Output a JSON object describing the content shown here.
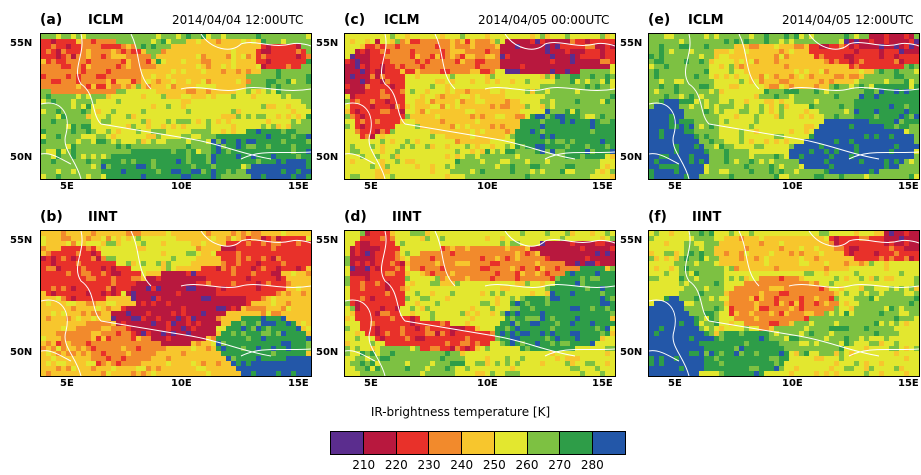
{
  "panels": [
    {
      "label": "(a)",
      "model": "ICLM",
      "time": "2014/04/04 12:00UTC"
    },
    {
      "label": "(c)",
      "model": "ICLM",
      "time": "2014/04/05 00:00UTC"
    },
    {
      "label": "(e)",
      "model": "ICLM",
      "time": "2014/04/05 12:00UTC"
    },
    {
      "label": "(b)",
      "model": "IINT",
      "time": ""
    },
    {
      "label": "(d)",
      "model": "IINT",
      "time": ""
    },
    {
      "label": "(f)",
      "model": "IINT",
      "time": ""
    }
  ],
  "axes": {
    "lat_labels": [
      "55N",
      "50N"
    ],
    "lon_labels": [
      "5E",
      "10E",
      "15E"
    ]
  },
  "colorbar": {
    "title": "IR-brightness temperature [K]",
    "ticks": [
      "210",
      "220",
      "230",
      "240",
      "250",
      "260",
      "270",
      "280"
    ],
    "colors": [
      "#5b2d8e",
      "#b8183e",
      "#e8312a",
      "#f28a2c",
      "#f7c62d",
      "#e3e72f",
      "#7dc142",
      "#2e9d48",
      "#2357a8"
    ]
  }
}
